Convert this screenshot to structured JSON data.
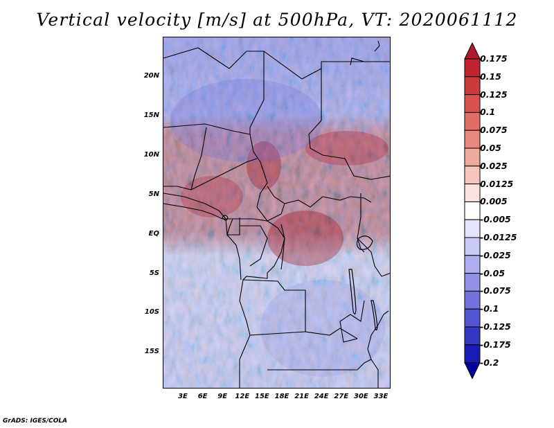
{
  "title": "Vertical velocity [m/s] at 500hPa, VT: 2020061112",
  "footer": "GrADS: IGES/COLA",
  "map": {
    "lat_labels": [
      "20N",
      "15N",
      "10N",
      "5N",
      "EQ",
      "5S",
      "10S",
      "15S"
    ],
    "lon_labels": [
      "3E",
      "6E",
      "9E",
      "12E",
      "15E",
      "18E",
      "21E",
      "24E",
      "27E",
      "30E",
      "33E"
    ]
  },
  "colorbar": {
    "levels": [
      "0.175",
      "0.15",
      "0.125",
      "0.1",
      "0.075",
      "0.05",
      "0.025",
      "0.0125",
      "0.005",
      "-0.005",
      "-0.0125",
      "-0.025",
      "-0.05",
      "-0.075",
      "-0.1",
      "-0.125",
      "-0.175",
      "-0.2"
    ],
    "colors": [
      "#b2182b",
      "#c0262f",
      "#cd3a3c",
      "#d9534f",
      "#e06c66",
      "#e8897f",
      "#f0a79c",
      "#f6c6bd",
      "#fbe3de",
      "#ffffff",
      "#e4e4fb",
      "#c9c9f5",
      "#adadef",
      "#9191e7",
      "#7373dd",
      "#5555d2",
      "#3636c4",
      "#1a1ab4",
      "#0000a0"
    ]
  },
  "colors": {
    "background": "#ffffff",
    "land_outline": "#000000"
  }
}
